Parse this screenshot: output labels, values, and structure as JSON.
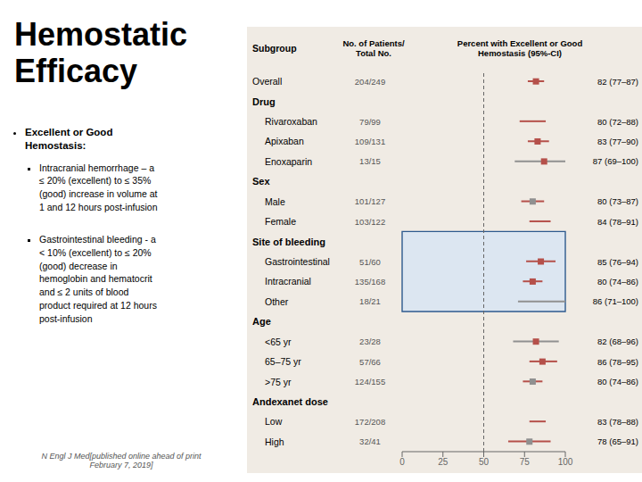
{
  "chart_data": {
    "type": "forest",
    "title": "Hemostatic\nEfficacy",
    "annotations": {
      "bullet_header": "Excellent or Good\nHemostasis:",
      "bullets": [
        "Intracranial hemorrhage – a\n≤ 20% (excellent) to ≤ 35%\n(good) increase in volume at\n1 and 12 hours post-infusion",
        "Gastrointestinal bleeding - a\n< 10% (excellent) to ≤ 20%\n(good) decrease in\nhemoglobin and hematocrit\nand ≤ 2 units of blood\nproduct required at 12 hours\npost-infusion"
      ],
      "citation": "N Engl J Med[published online ahead of print\nFebruary 7, 2019]"
    },
    "column_headers": [
      "Subgroup",
      "No. of Patients/\nTotal No.",
      "Percent with Excellent or Good\nHemostasis (95%-CI)"
    ],
    "categories": [
      "Overall",
      "Drug",
      "Rivaroxaban",
      "Apixaban",
      "Enoxaparin",
      "Sex",
      "Male",
      "Female",
      "Site of bleeding",
      "Gastrointestinal",
      "Intracranial",
      "Other",
      "Age",
      "<65 yr",
      "65–75 yr",
      ">75 yr",
      "Andexanet dose",
      "Low",
      "High"
    ],
    "values": [
      82,
      null,
      80,
      83,
      87,
      null,
      80,
      84,
      null,
      85,
      80,
      86,
      null,
      82,
      86,
      80,
      null,
      83,
      78
    ],
    "ci_low": [
      77,
      null,
      72,
      77,
      69,
      null,
      73,
      78,
      null,
      76,
      74,
      71,
      null,
      68,
      78,
      74,
      null,
      78,
      65
    ],
    "ci_high": [
      87,
      null,
      88,
      90,
      100,
      null,
      87,
      91,
      null,
      94,
      86,
      100,
      null,
      96,
      95,
      86,
      null,
      88,
      91
    ],
    "value_labels": [
      "82 (77–87)",
      null,
      "80 (72–88)",
      "83 (77–90)",
      "87 (69–100)",
      null,
      "80 (73–87)",
      "84 (78–91)",
      null,
      "85 (76–94)",
      "80 (74–86)",
      "86 (71–100)",
      null,
      "82 (68–96)",
      "86 (78–95)",
      "80 (74–86)",
      null,
      "83 (78–88)",
      "78 (65–91)"
    ],
    "n_labels": [
      "204/249",
      null,
      "79/99",
      "109/131",
      "13/15",
      null,
      "101/127",
      "103/122",
      null,
      "51/60",
      "135/168",
      "18/21",
      null,
      "23/28",
      "57/66",
      "124/155",
      null,
      "172/208",
      "32/41"
    ],
    "colors": [
      "#b5504a",
      null,
      "#b5504a",
      "#b5504a",
      "#909090",
      null,
      "#b5504a",
      "#b5504a",
      null,
      "#b5504a",
      "#b5504a",
      "#909090",
      null,
      "#909090",
      "#b5504a",
      "#b5504a",
      null,
      "#b5504a",
      "#b5504a"
    ],
    "highlight": [
      false,
      false,
      false,
      false,
      false,
      false,
      false,
      false,
      true,
      true,
      true,
      true,
      false,
      false,
      false,
      false,
      false,
      false,
      false
    ],
    "highlight_color": "#2d5a8e",
    "highlight_fill": "#dce6f1",
    "background": "#f0ebe4",
    "reference_x": 50,
    "xlim": [
      0,
      100
    ],
    "xticks": [
      0,
      25,
      50,
      75,
      100
    ]
  }
}
